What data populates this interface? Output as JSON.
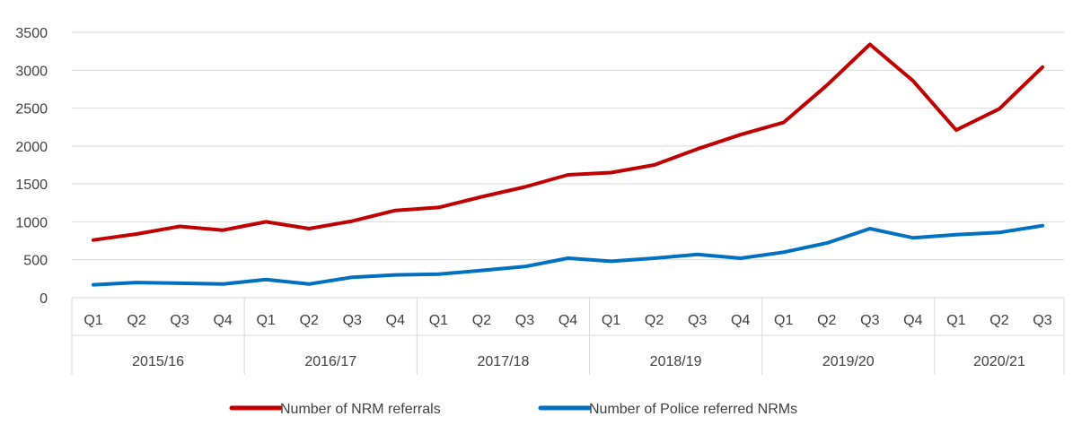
{
  "heading_fragment": "",
  "chart_data": {
    "type": "line",
    "title": "",
    "xlabel": "",
    "ylabel": "",
    "ylim": [
      0,
      3500
    ],
    "yticks": [
      0,
      500,
      1000,
      1500,
      2000,
      2500,
      3000,
      3500
    ],
    "grid": true,
    "legend_position": "bottom",
    "quarters": [
      "Q1",
      "Q2",
      "Q3",
      "Q4",
      "Q1",
      "Q2",
      "Q3",
      "Q4",
      "Q1",
      "Q2",
      "Q3",
      "Q4",
      "Q1",
      "Q2",
      "Q3",
      "Q4",
      "Q1",
      "Q2",
      "Q3",
      "Q4",
      "Q1",
      "Q2",
      "Q3"
    ],
    "years": [
      {
        "label": "2015/16",
        "count": 4
      },
      {
        "label": "2016/17",
        "count": 4
      },
      {
        "label": "2017/18",
        "count": 4
      },
      {
        "label": "2018/19",
        "count": 4
      },
      {
        "label": "2019/20",
        "count": 4
      },
      {
        "label": "2020/21",
        "count": 3
      }
    ],
    "series": [
      {
        "name": "Number of NRM referrals",
        "color": "#c00000",
        "values": [
          760,
          840,
          940,
          890,
          1000,
          910,
          1010,
          1150,
          1190,
          1330,
          1460,
          1620,
          1650,
          1750,
          1960,
          2150,
          2310,
          2800,
          3340,
          2860,
          2210,
          2490,
          3040
        ]
      },
      {
        "name": "Number of Police referred NRMs",
        "color": "#0070c0",
        "values": [
          170,
          200,
          190,
          180,
          240,
          180,
          270,
          300,
          310,
          360,
          410,
          520,
          480,
          520,
          570,
          520,
          600,
          720,
          910,
          790,
          830,
          860,
          950
        ]
      }
    ]
  }
}
